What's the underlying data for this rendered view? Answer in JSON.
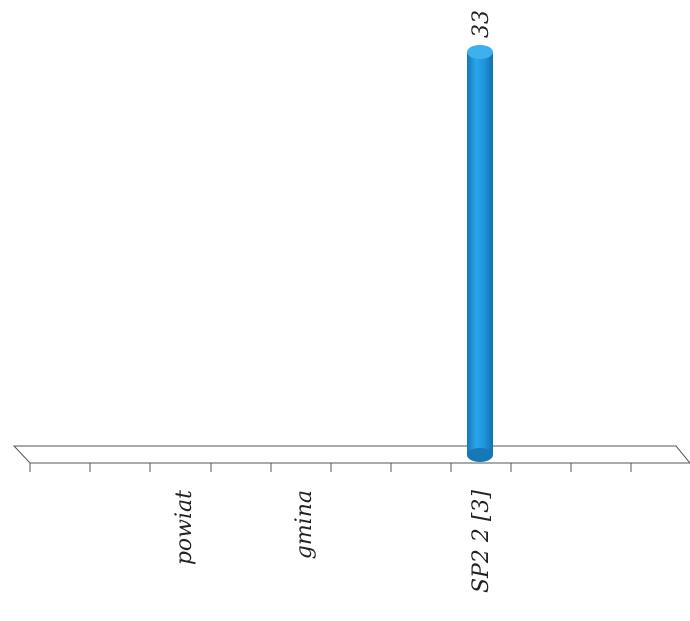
{
  "chart_data": {
    "type": "bar",
    "style": "3d-cylinder",
    "categories": [
      "powiat",
      "gmina",
      "SP2 2 [3]"
    ],
    "values": [
      null,
      null,
      33
    ],
    "data_labels": [
      "",
      "",
      "33"
    ],
    "ylim": [
      0,
      33
    ],
    "grid": false,
    "legend": "none",
    "bar_color": "#1e96dc",
    "axis_color": "#555555",
    "text_color": "#222222"
  }
}
